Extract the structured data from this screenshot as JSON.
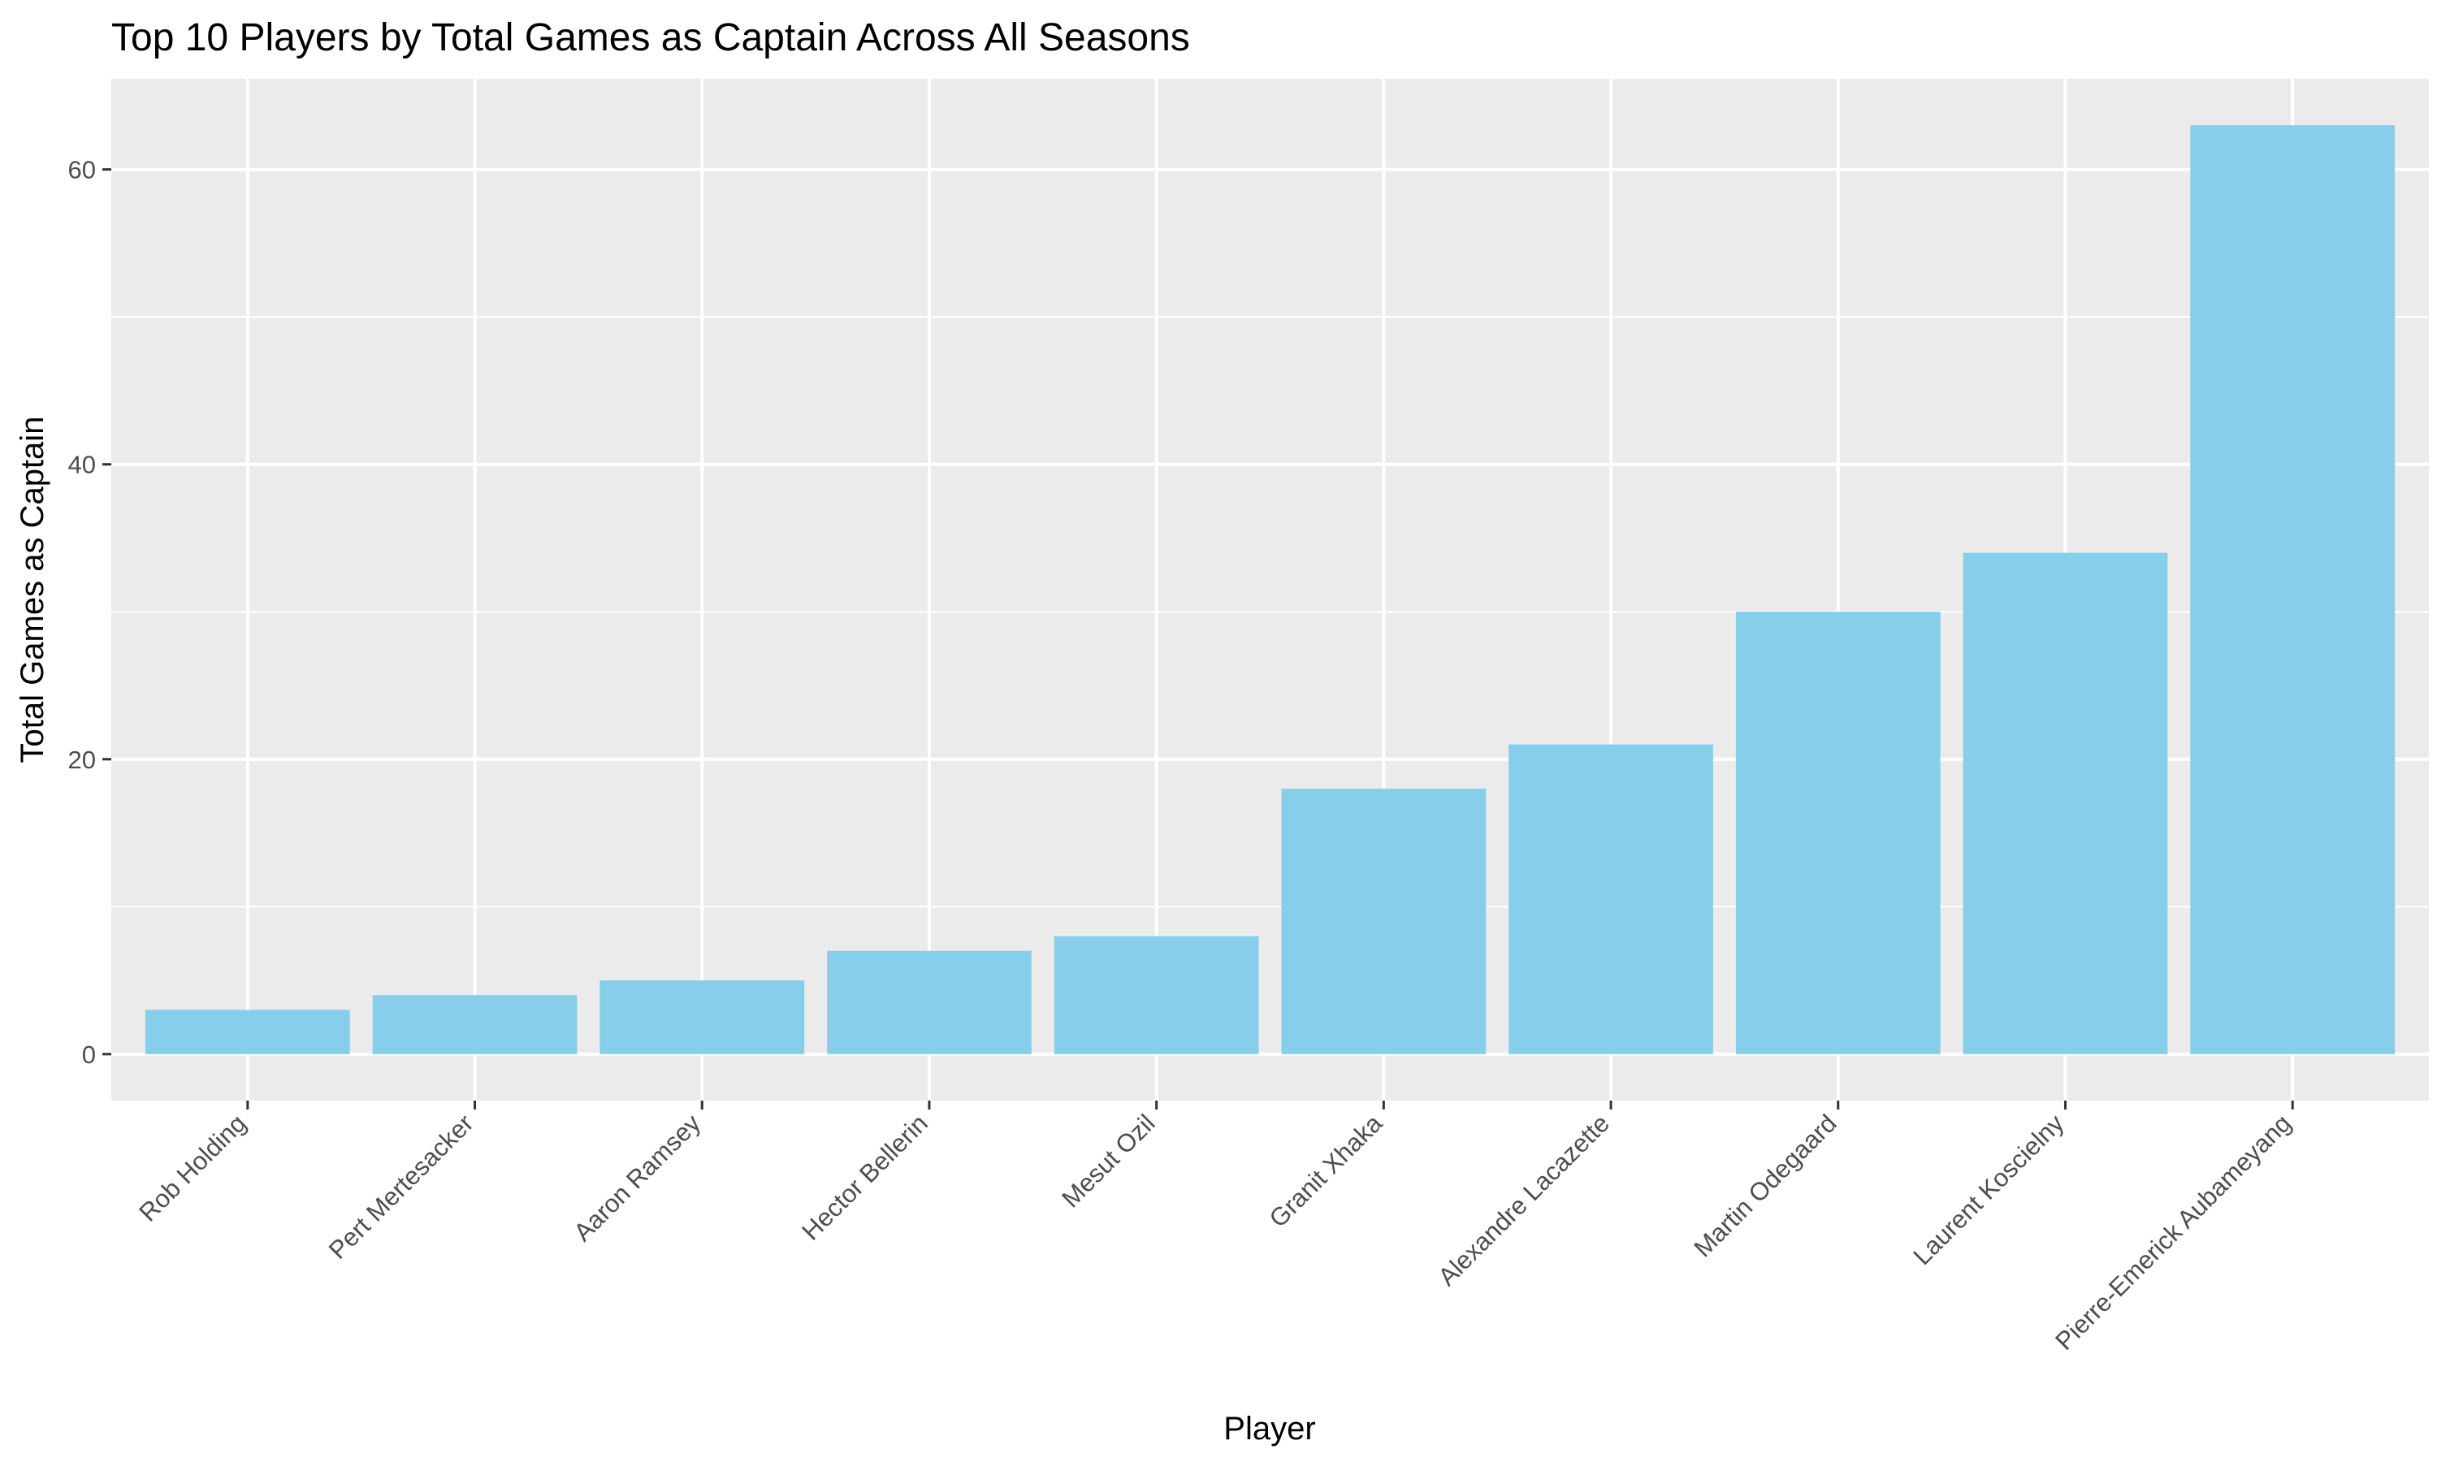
{
  "chart_data": {
    "type": "bar",
    "title": "Top 10 Players by Total Games as Captain Across All Seasons",
    "xlabel": "Player",
    "ylabel": "Total Games as Captain",
    "categories": [
      "Rob Holding",
      "Pert Mertesacker",
      "Aaron Ramsey",
      "Hector Bellerin",
      "Mesut Ozil",
      "Granit Xhaka",
      "Alexandre Lacazette",
      "Martin Odegaard",
      "Laurent Koscielny",
      "Pierre-Emerick Aubameyang"
    ],
    "values": [
      3,
      4,
      5,
      7,
      8,
      18,
      21,
      30,
      34,
      63
    ],
    "ylim": [
      -3.15,
      66.15
    ],
    "yticks": [
      0,
      20,
      40,
      60
    ],
    "yticks_minor": [
      10,
      30,
      50
    ],
    "grid": true,
    "legend": "none",
    "colors": {
      "bar": "#87CEEB",
      "panel_background": "#EBEBEB",
      "grid": "#FFFFFF",
      "tick_text": "#4D4D4D",
      "text": "#000000"
    }
  }
}
